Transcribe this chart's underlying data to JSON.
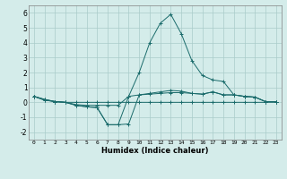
{
  "x": [
    0,
    1,
    2,
    3,
    4,
    5,
    6,
    7,
    8,
    9,
    10,
    11,
    12,
    13,
    14,
    15,
    16,
    17,
    18,
    19,
    20,
    21,
    22,
    23
  ],
  "line_flat": [
    0.4,
    0.2,
    0.05,
    0.0,
    0.0,
    0.0,
    0.0,
    0.0,
    0.0,
    0.0,
    0.0,
    0.0,
    0.0,
    0.0,
    0.0,
    0.0,
    0.0,
    0.0,
    0.0,
    0.0,
    0.0,
    0.0,
    0.0,
    0.0
  ],
  "line_mid": [
    0.4,
    0.2,
    0.05,
    0.0,
    -0.15,
    -0.2,
    -0.2,
    -0.2,
    -0.2,
    0.4,
    0.5,
    0.55,
    0.6,
    0.65,
    0.65,
    0.6,
    0.55,
    0.7,
    0.5,
    0.5,
    0.4,
    0.35,
    0.05,
    0.05
  ],
  "line_main": [
    0.4,
    0.15,
    0.05,
    0.0,
    -0.2,
    -0.3,
    -0.35,
    -1.5,
    -1.5,
    0.4,
    2.0,
    4.0,
    5.3,
    5.9,
    4.6,
    2.8,
    1.8,
    1.5,
    1.4,
    0.5,
    0.4,
    0.35,
    0.05,
    0.05
  ],
  "line_low": [
    0.4,
    0.15,
    0.05,
    0.0,
    -0.2,
    -0.3,
    -0.35,
    -1.5,
    -1.5,
    -1.45,
    0.5,
    0.6,
    0.7,
    0.8,
    0.75,
    0.6,
    0.55,
    0.7,
    0.5,
    0.5,
    0.4,
    0.35,
    0.05,
    0.05
  ],
  "bg_color": "#d4ecea",
  "line_color": "#1a6b6b",
  "grid_color": "#aaccca",
  "xlabel": "Humidex (Indice chaleur)",
  "xlim": [
    -0.5,
    23.5
  ],
  "ylim": [
    -2.5,
    6.5
  ],
  "yticks": [
    -2,
    -1,
    0,
    1,
    2,
    3,
    4,
    5,
    6
  ],
  "xticks": [
    0,
    1,
    2,
    3,
    4,
    5,
    6,
    7,
    8,
    9,
    10,
    11,
    12,
    13,
    14,
    15,
    16,
    17,
    18,
    19,
    20,
    21,
    22,
    23
  ]
}
